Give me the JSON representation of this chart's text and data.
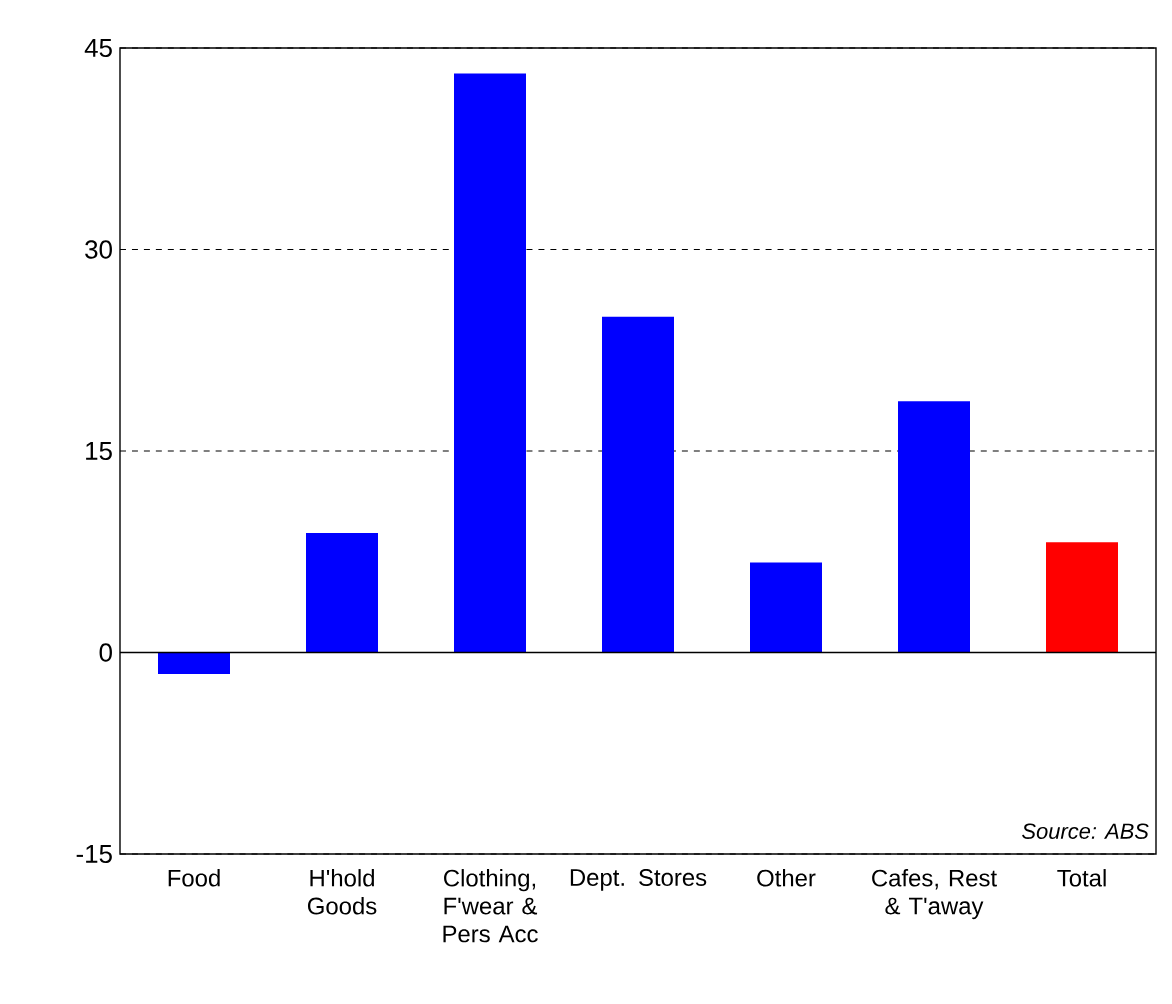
{
  "chart_data": {
    "type": "bar",
    "categories": [
      "Food",
      "H'hold Goods",
      "Clothing, F'wear & Pers Acc",
      "Dept. Stores",
      "Other",
      "Cafes, Rest & T'away",
      "Total"
    ],
    "values": [
      -1.6,
      8.9,
      43.1,
      25.0,
      6.7,
      18.7,
      8.2
    ],
    "colors": [
      "#0000ff",
      "#0000ff",
      "#0000ff",
      "#0000ff",
      "#0000ff",
      "#0000ff",
      "#ff0000"
    ],
    "ylim": [
      -15,
      45
    ],
    "yticks": [
      -15,
      0,
      15,
      30,
      45
    ],
    "grid": "y",
    "annotations": [
      "Source: ABS"
    ]
  }
}
